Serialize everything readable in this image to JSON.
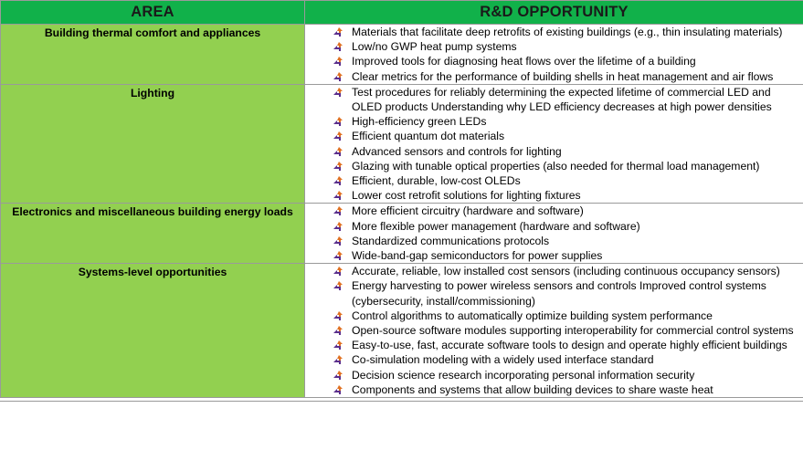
{
  "header": {
    "area": "AREA",
    "opportunity": "R&D OPPORTUNITY"
  },
  "colors": {
    "header_green": "#11b14a",
    "area_green": "#92d050",
    "bullet_orange": "#e07020",
    "bullet_purple": "#5a2e8c"
  },
  "bullet_icon": "arrow-bullet-icon",
  "rows": [
    {
      "area": "Building thermal comfort and appliances",
      "items": [
        "Materials that facilitate deep retrofits of existing buildings (e.g., thin insulating materials)",
        "Low/no GWP heat pump systems",
        "Improved tools for diagnosing heat flows over the lifetime of a building",
        "Clear metrics for the performance of building shells in heat management and air flows"
      ]
    },
    {
      "area": "Lighting",
      "items": [
        "Test procedures for reliably determining the expected lifetime of commercial LED and OLED products Understanding why LED efficiency decreases at high power densities",
        "High-efficiency green LEDs",
        "Efficient quantum dot materials",
        "Advanced sensors and controls for lighting",
        "Glazing with tunable optical properties (also needed for thermal load management)",
        "Efficient, durable, low-cost OLEDs",
        "Lower cost retrofit solutions for lighting fixtures"
      ]
    },
    {
      "area": "Electronics and miscellaneous building energy loads",
      "items": [
        "More efficient circuitry (hardware and software)",
        "More flexible power management (hardware and software)",
        "Standardized communications protocols",
        "Wide-band-gap semiconductors for power supplies"
      ]
    },
    {
      "area": "Systems-level opportunities",
      "items": [
        "Accurate, reliable, low installed cost sensors (including continuous occupancy sensors)",
        "Energy harvesting to power wireless sensors and controls Improved control systems (cybersecurity, install/commissioning)",
        "Control algorithms to automatically optimize building system performance",
        "Open-source software modules supporting interoperability for commercial control systems",
        "Easy-to-use, fast, accurate software tools to design and operate highly efficient buildings",
        "Co-simulation modeling with a widely used interface standard",
        "Decision science research incorporating personal information security",
        "Components and systems that allow building devices to share waste heat"
      ]
    }
  ]
}
